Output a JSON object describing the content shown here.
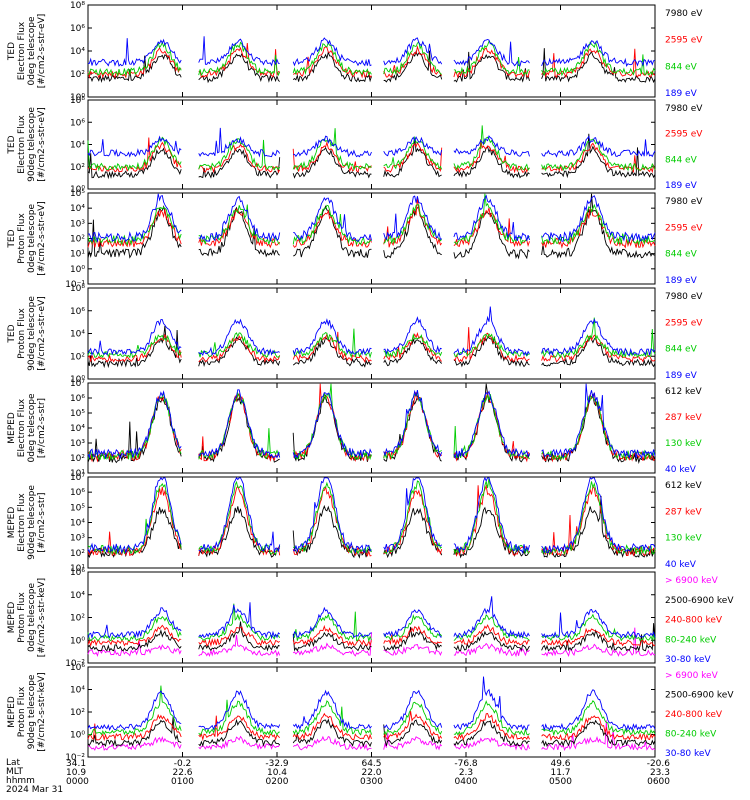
{
  "chart_data": [
    {
      "type": "line",
      "ylabel": [
        "TED",
        "Electron Flux",
        "0deg telescope",
        "[#/cm2-s-str-eV]"
      ],
      "yscale": "log",
      "ylim": [
        1,
        100000000
      ],
      "ytick_labels": [
        "10⁰",
        "10²",
        "10⁴",
        "10⁶",
        "10⁸"
      ],
      "series": [
        {
          "name": "7980 eV",
          "color": "#000000",
          "base_exp": 1.6,
          "peak_exp": 2.9
        },
        {
          "name": "2595 eV",
          "color": "#ff0000",
          "base_exp": 2.0,
          "peak_exp": 3.3
        },
        {
          "name": "844 eV",
          "color": "#00cc00",
          "base_exp": 2.2,
          "peak_exp": 3.7
        },
        {
          "name": "189 eV",
          "color": "#0000ff",
          "base_exp": 3.0,
          "peak_exp": 4.2
        }
      ]
    },
    {
      "type": "line",
      "ylabel": [
        "TED",
        "Electron Flux",
        "90deg telescope",
        "[#/cm2-s-str-eV]"
      ],
      "yscale": "log",
      "ylim": [
        1,
        100000000
      ],
      "ytick_labels": [
        "10⁰",
        "10²",
        "10⁴",
        "10⁶",
        "10⁸"
      ],
      "series": [
        {
          "name": "7980 eV",
          "color": "#000000",
          "base_exp": 1.3,
          "peak_exp": 2.7
        },
        {
          "name": "2595 eV",
          "color": "#ff0000",
          "base_exp": 1.8,
          "peak_exp": 3.1
        },
        {
          "name": "844 eV",
          "color": "#00cc00",
          "base_exp": 2.0,
          "peak_exp": 3.5
        },
        {
          "name": "189 eV",
          "color": "#0000ff",
          "base_exp": 3.2,
          "peak_exp": 4.0
        }
      ]
    },
    {
      "type": "line",
      "ylabel": [
        "TED",
        "Proton Flux",
        "0deg telescope",
        "[#/cm2-s-str-eV]"
      ],
      "yscale": "log",
      "ylim": [
        0.1,
        100000
      ],
      "ytick_labels": [
        "10⁻¹",
        "10⁰",
        "10¹",
        "10²",
        "10³",
        "10⁴",
        "10⁵"
      ],
      "series": [
        {
          "name": "7980 eV",
          "color": "#000000",
          "base_exp": 1.0,
          "peak_exp": 2.8
        },
        {
          "name": "2595 eV",
          "color": "#ff0000",
          "base_exp": 1.7,
          "peak_exp": 3.0
        },
        {
          "name": "844 eV",
          "color": "#00cc00",
          "base_exp": 1.9,
          "peak_exp": 3.2
        },
        {
          "name": "189 eV",
          "color": "#0000ff",
          "base_exp": 2.1,
          "peak_exp": 3.7
        }
      ]
    },
    {
      "type": "line",
      "ylabel": [
        "TED",
        "Proton Flux",
        "90deg telescope",
        "[#/cm2-s-str-eV]"
      ],
      "yscale": "log",
      "ylim": [
        1,
        100000000
      ],
      "ytick_labels": [
        "10⁰",
        "10²",
        "10⁴",
        "10⁶",
        "10⁸"
      ],
      "series": [
        {
          "name": "7980 eV",
          "color": "#000000",
          "base_exp": 1.4,
          "peak_exp": 2.7
        },
        {
          "name": "2595 eV",
          "color": "#ff0000",
          "base_exp": 1.8,
          "peak_exp": 3.0
        },
        {
          "name": "844 eV",
          "color": "#00cc00",
          "base_exp": 2.2,
          "peak_exp": 3.2
        },
        {
          "name": "189 eV",
          "color": "#0000ff",
          "base_exp": 2.4,
          "peak_exp": 4.1
        }
      ]
    },
    {
      "type": "line",
      "ylabel": [
        "MEPED",
        "Electron Flux",
        "0deg telescope",
        "[#/cm2-s-str]"
      ],
      "yscale": "log",
      "ylim": [
        10,
        10000000
      ],
      "ytick_labels": [
        "10¹",
        "10²",
        "10³",
        "10⁴",
        "10⁵",
        "10⁶",
        "10⁷"
      ],
      "series": [
        {
          "name": "612 keV",
          "color": "#000000",
          "base_exp": 2.0,
          "peak_exp": 4.5
        },
        {
          "name": "287 keV",
          "color": "#ff0000",
          "base_exp": 2.1,
          "peak_exp": 4.6
        },
        {
          "name": "130 keV",
          "color": "#00cc00",
          "base_exp": 2.2,
          "peak_exp": 4.7
        },
        {
          "name": "40 keV",
          "color": "#0000ff",
          "base_exp": 2.3,
          "peak_exp": 4.8
        }
      ]
    },
    {
      "type": "line",
      "ylabel": [
        "MEPED",
        "Electron Flux",
        "90deg telescope",
        "[#/cm2-s-str]"
      ],
      "yscale": "log",
      "ylim": [
        10,
        10000000
      ],
      "ytick_labels": [
        "10¹",
        "10²",
        "10³",
        "10⁴",
        "10⁵",
        "10⁶",
        "10⁷"
      ],
      "series": [
        {
          "name": "612 keV",
          "color": "#000000",
          "base_exp": 2.0,
          "peak_exp": 3.8
        },
        {
          "name": "287 keV",
          "color": "#ff0000",
          "base_exp": 2.1,
          "peak_exp": 4.6
        },
        {
          "name": "130 keV",
          "color": "#00cc00",
          "base_exp": 2.2,
          "peak_exp": 4.9
        },
        {
          "name": "40 keV",
          "color": "#0000ff",
          "base_exp": 2.3,
          "peak_exp": 5.3
        }
      ]
    },
    {
      "type": "line",
      "ylabel": [
        "MEPED",
        "Proton Flux",
        "0deg telescope",
        "[#/cm2-s-str-keV]"
      ],
      "yscale": "log",
      "ylim": [
        0.001,
        1000000
      ],
      "ytick_labels": [
        "10⁻²",
        "10⁰",
        "10²",
        "10⁴",
        "10⁶"
      ],
      "series": [
        {
          "name": "> 6900 keV",
          "color": "#ff00ff",
          "base_exp": -2.0,
          "peak_exp": -1.6
        },
        {
          "name": "2500-6900 keV",
          "color": "#000000",
          "base_exp": -1.5,
          "peak_exp": -0.6
        },
        {
          "name": "240-800 keV",
          "color": "#ff0000",
          "base_exp": -1.0,
          "peak_exp": -0.1
        },
        {
          "name": "80-240 keV",
          "color": "#00cc00",
          "base_exp": -0.5,
          "peak_exp": 0.8
        },
        {
          "name": "30-80 keV",
          "color": "#0000ff",
          "base_exp": -0.2,
          "peak_exp": 1.3
        }
      ]
    },
    {
      "type": "line",
      "ylabel": [
        "MEPED",
        "Proton Flux",
        "90deg telescope",
        "[#/cm2-s-str-keV]"
      ],
      "yscale": "log",
      "ylim": [
        0.001,
        1000000
      ],
      "ytick_labels": [
        "10⁻²",
        "10⁰",
        "10²",
        "10⁴",
        "10⁶"
      ],
      "series": [
        {
          "name": "> 6900 keV",
          "color": "#ff00ff",
          "base_exp": -2.0,
          "peak_exp": -1.5
        },
        {
          "name": "2500-6900 keV",
          "color": "#000000",
          "base_exp": -1.6,
          "peak_exp": -0.3
        },
        {
          "name": "240-800 keV",
          "color": "#ff0000",
          "base_exp": -1.0,
          "peak_exp": 0.3
        },
        {
          "name": "80-240 keV",
          "color": "#00cc00",
          "base_exp": -0.5,
          "peak_exp": 1.3
        },
        {
          "name": "30-80 keV",
          "color": "#0000ff",
          "base_exp": 0.0,
          "peak_exp": 2.2
        }
      ]
    }
  ],
  "xaxis": {
    "row_labels": [
      "Lat",
      "MLT",
      "hhmm",
      "2024 Mar 31"
    ],
    "ticks": [
      {
        "lat": "34.1",
        "mlt": "10.9",
        "hhmm": "0000"
      },
      {
        "lat": "-0.2",
        "mlt": "22.6",
        "hhmm": "0100"
      },
      {
        "lat": "-32.9",
        "mlt": "10.4",
        "hhmm": "0200"
      },
      {
        "lat": "64.5",
        "mlt": "22.0",
        "hhmm": "0300"
      },
      {
        "lat": "-76.8",
        "mlt": "2.3",
        "hhmm": "0400"
      },
      {
        "lat": "49.6",
        "mlt": "11.7",
        "hhmm": "0500"
      },
      {
        "lat": "-20.6",
        "mlt": "23.3",
        "hhmm": "0600"
      }
    ]
  }
}
